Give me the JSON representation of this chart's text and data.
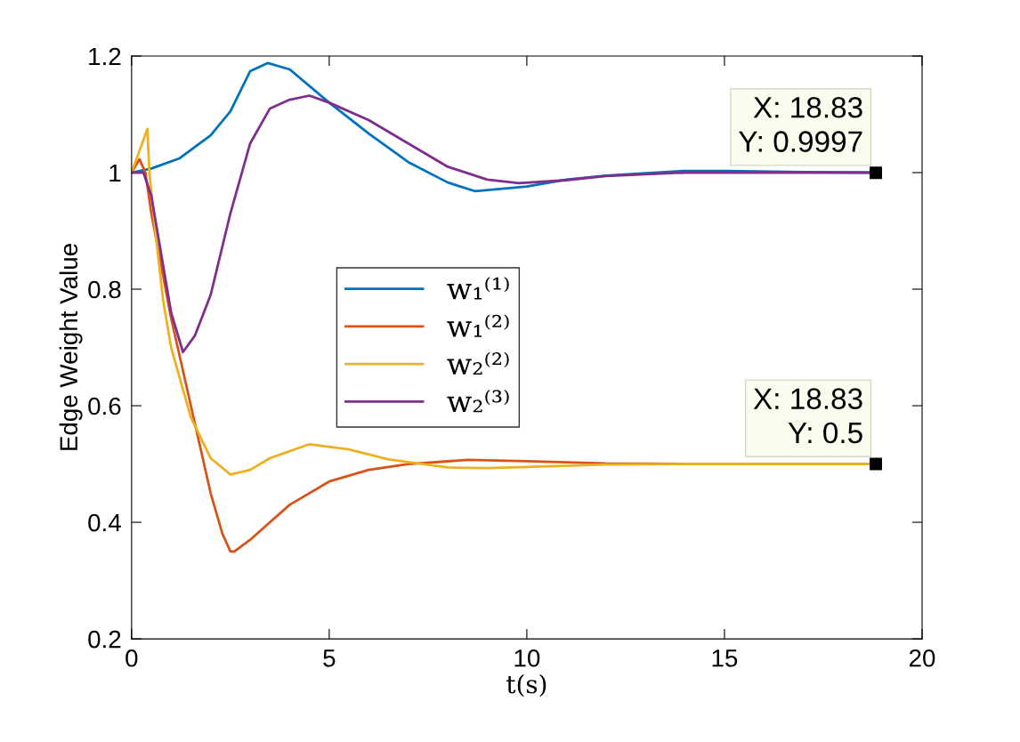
{
  "chart_data": {
    "type": "line",
    "xlabel": "t(s)",
    "ylabel": "Edge Weight Value",
    "xlim": [
      0,
      20
    ],
    "xticks": [
      0,
      5,
      10,
      15,
      20
    ],
    "ylim": [
      0.2,
      1.2
    ],
    "yticks": [
      0.2,
      0.4,
      0.6,
      0.8,
      1,
      1.2
    ],
    "grid": false,
    "legend": "center",
    "line_style": "solid",
    "marker": "none",
    "series": [
      {
        "name": "w₁⁽¹⁾",
        "color": "#0072bd",
        "x": [
          0,
          0.5,
          1.2,
          2,
          2.5,
          3,
          3.45,
          4,
          5,
          6,
          7,
          8,
          8.7,
          10,
          11,
          12,
          14,
          15,
          17,
          18.83
        ],
        "values": [
          1.0,
          1.007,
          1.024,
          1.064,
          1.105,
          1.174,
          1.188,
          1.177,
          1.12,
          1.067,
          1.018,
          0.983,
          0.968,
          0.976,
          0.988,
          0.995,
          1.003,
          1.003,
          1.001,
          1.0
        ]
      },
      {
        "name": "w₁⁽²⁾",
        "color": "#d95319",
        "x": [
          0,
          0.2,
          0.35,
          0.5,
          1.0,
          1.5,
          2.0,
          2.3,
          2.5,
          2.6,
          3,
          3.5,
          4,
          5,
          6,
          7,
          8.5,
          10,
          12,
          14,
          18.83
        ],
        "values": [
          1.0,
          1.023,
          1.0,
          0.93,
          0.75,
          0.6,
          0.45,
          0.38,
          0.35,
          0.35,
          0.37,
          0.4,
          0.43,
          0.47,
          0.49,
          0.5,
          0.507,
          0.505,
          0.501,
          0.5,
          0.5
        ]
      },
      {
        "name": "w₂⁽²⁾",
        "color": "#edb120",
        "x": [
          0,
          0.4,
          0.45,
          0.6,
          0.8,
          1,
          1.5,
          2,
          2.5,
          3,
          3.5,
          4.5,
          5.5,
          6.5,
          8,
          9,
          10,
          12,
          14,
          18.83
        ],
        "values": [
          1.0,
          1.075,
          1.0,
          0.9,
          0.78,
          0.7,
          0.58,
          0.51,
          0.482,
          0.49,
          0.51,
          0.534,
          0.525,
          0.508,
          0.494,
          0.493,
          0.495,
          0.499,
          0.5,
          0.5
        ]
      },
      {
        "name": "w₂⁽³⁾",
        "color": "#7e2f8e",
        "x": [
          0,
          0.3,
          0.5,
          0.8,
          1.0,
          1.3,
          1.6,
          2,
          2.5,
          3,
          3.5,
          4,
          4.5,
          5,
          6,
          7,
          8,
          9,
          9.8,
          11,
          12,
          14,
          16,
          18.83
        ],
        "values": [
          1.0,
          1.0,
          0.96,
          0.84,
          0.76,
          0.692,
          0.72,
          0.79,
          0.93,
          1.05,
          1.11,
          1.125,
          1.132,
          1.12,
          1.09,
          1.05,
          1.01,
          0.988,
          0.982,
          0.987,
          0.994,
          1.0,
          1.0,
          1.0
        ]
      }
    ],
    "annotations": [
      {
        "text": "X: 18.83\nY: 0.9997",
        "x": 18.83,
        "y": 0.9997
      },
      {
        "text": "X: 18.83\nY: 0.5",
        "x": 18.83,
        "y": 0.5
      }
    ]
  }
}
